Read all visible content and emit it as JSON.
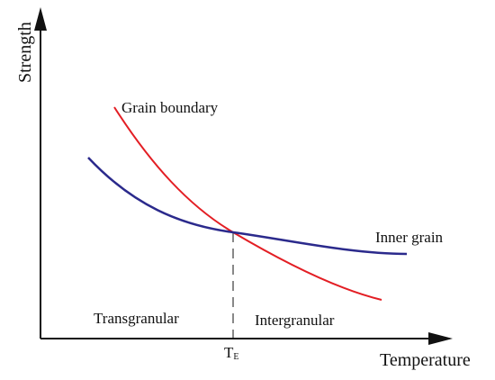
{
  "chart_data": {
    "type": "line",
    "title": "",
    "xlabel": "Temperature",
    "ylabel": "Strength",
    "x_ticks": [
      {
        "label": "T",
        "sub": "E"
      }
    ],
    "grid": false,
    "series": [
      {
        "name": "Grain boundary",
        "color": "#e31e24"
      },
      {
        "name": "Inner grain",
        "color": "#2b2a8c"
      }
    ],
    "regions": {
      "left": "Transgranular",
      "right": "Intergranular"
    }
  },
  "colors": {
    "axis": "#111111",
    "grain_boundary": "#e31e24",
    "inner_grain": "#2b2a8c"
  }
}
